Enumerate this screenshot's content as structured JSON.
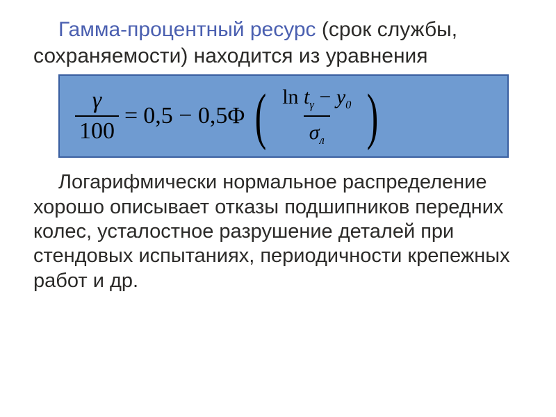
{
  "title": {
    "highlight_text": "Гамма-процентный ресурс",
    "rest_text": " (срок службы, сохраняемости) находится из уравнения",
    "highlight_color": "#4a5fb0",
    "rest_color": "#2b2a28"
  },
  "formula": {
    "bg_color": "#6f9bd1",
    "text_color": "#000000",
    "lhs_num": "γ",
    "lhs_den": "100",
    "eq": "=",
    "rhs_const": "0,5 − 0,5Φ",
    "arg_num_prefix": "ln ",
    "arg_num_var": "t",
    "arg_num_sub": "γ",
    "arg_num_mid": " − ",
    "arg_num_var2": "y",
    "arg_num_sub2": "0",
    "arg_den_var": "σ",
    "arg_den_sub": "л"
  },
  "body": {
    "text": "Логарифмически нормальное распределение хорошо описывает отказы подшипников передних колес, усталостное разрушение деталей при стендовых испытаниях, периодичности крепежных работ и др.",
    "color": "#2b2a28"
  }
}
